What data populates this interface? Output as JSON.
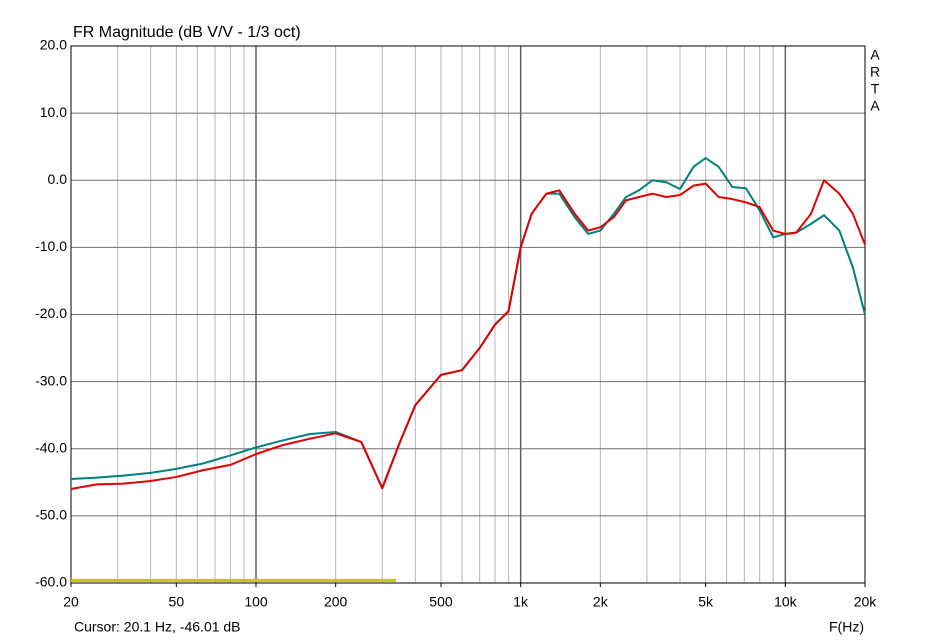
{
  "chart_data": {
    "type": "line",
    "title": "FR Magnitude (dB V/V - 1/3 oct)",
    "brand": [
      "A",
      "R",
      "T",
      "A"
    ],
    "cursor_text": "Cursor: 20.1 Hz, -46.01 dB",
    "xlabel": "F(Hz)",
    "xscale": "log",
    "grid": true,
    "xlim": [
      20,
      20000
    ],
    "ylim": [
      -60,
      20
    ],
    "xticks": [
      20,
      50,
      100,
      200,
      500,
      {
        "value": 1000,
        "label": "1k"
      },
      {
        "value": 2000,
        "label": "2k"
      },
      {
        "value": 5000,
        "label": "5k"
      },
      {
        "value": 10000,
        "label": "10k"
      },
      {
        "value": 20000,
        "label": "20k"
      }
    ],
    "xgrid": [
      30,
      40,
      50,
      60,
      70,
      80,
      90,
      100,
      200,
      300,
      400,
      500,
      600,
      700,
      800,
      900,
      1000,
      2000,
      3000,
      4000,
      5000,
      6000,
      7000,
      8000,
      9000,
      10000
    ],
    "yticks": [
      {
        "value": 20,
        "label": "20.0"
      },
      {
        "value": 10,
        "label": "10.0"
      },
      {
        "value": 0,
        "label": "0.0"
      },
      {
        "value": -10,
        "label": "-10.0"
      },
      {
        "value": -20,
        "label": "-20.0"
      },
      {
        "value": -30,
        "label": "-30.0"
      },
      {
        "value": -40,
        "label": "-40.0"
      },
      {
        "value": -50,
        "label": "-50.0"
      },
      {
        "value": -60,
        "label": "-60.0"
      }
    ],
    "x": [
      20,
      25,
      31.5,
      40,
      50,
      63,
      80,
      100,
      125,
      160,
      200,
      250,
      300,
      350,
      400,
      500,
      600,
      700,
      800,
      900,
      1000,
      1100,
      1250,
      1400,
      1600,
      1800,
      2000,
      2250,
      2500,
      2800,
      3150,
      3550,
      4000,
      4500,
      5000,
      5600,
      6300,
      7100,
      8000,
      9000,
      10000,
      11000,
      12500,
      14000,
      16000,
      18000,
      20000
    ],
    "series": [
      {
        "color": "#008080",
        "values": [
          -44.5,
          -44.3,
          -44,
          -43.6,
          -43,
          -42.2,
          -41,
          -39.8,
          -38.8,
          -37.8,
          -37.5,
          -39,
          -45.8,
          -39,
          -33.5,
          -29,
          -28.3,
          -25,
          -21.5,
          -19.5,
          -10,
          -5,
          -2,
          -2,
          -5.5,
          -8,
          -7.5,
          -5,
          -2.5,
          -1.5,
          0,
          -0.3,
          -1.3,
          2,
          3.3,
          2,
          -1,
          -1.2,
          -4.5,
          -8.5,
          -8,
          -7.8,
          -6.5,
          -5.2,
          -7.5,
          -13,
          -20
        ]
      },
      {
        "color": "#e00000",
        "values": [
          -46,
          -45.3,
          -45.2,
          -44.8,
          -44.2,
          -43.2,
          -42.4,
          -40.8,
          -39.5,
          -38.5,
          -37.7,
          -39,
          -45.9,
          -39,
          -33.5,
          -29,
          -28.3,
          -25,
          -21.5,
          -19.5,
          -10,
          -5,
          -2,
          -1.5,
          -5,
          -7.5,
          -7,
          -5.5,
          -3,
          -2.5,
          -2,
          -2.5,
          -2.2,
          -0.8,
          -0.5,
          -2.5,
          -2.8,
          -3.3,
          -4,
          -7.5,
          -8,
          -7.8,
          -5,
          0,
          -2,
          -5,
          -9.6
        ]
      },
      {
        "color": "#c8c800",
        "x": [
          20,
          338
        ],
        "values": [
          -59.6,
          -59.6
        ]
      }
    ]
  }
}
